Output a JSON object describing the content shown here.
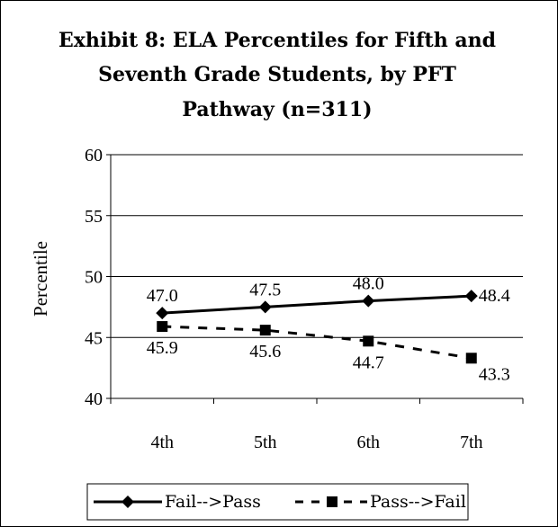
{
  "chart_data": {
    "type": "line",
    "title_lines": [
      "Exhibit 8:  ELA Percentiles for Fifth and",
      "Seventh Grade Students, by PFT",
      "Pathway (n=311)"
    ],
    "xlabel": "",
    "ylabel": "Percentile",
    "categories": [
      "4th",
      "5th",
      "6th",
      "7th"
    ],
    "ylim": [
      40,
      60
    ],
    "yticks": [
      40,
      45,
      50,
      55,
      60
    ],
    "grid": true,
    "legend_position": "bottom",
    "series": [
      {
        "name": "Fail-->Pass",
        "values": [
          47.0,
          47.5,
          48.0,
          48.4
        ],
        "labels": [
          "47.0",
          "47.5",
          "48.0",
          "48.4"
        ],
        "marker": "diamond",
        "line_style": "solid",
        "color": "#000000"
      },
      {
        "name": "Pass-->Fail",
        "values": [
          45.9,
          45.6,
          44.7,
          43.3
        ],
        "labels": [
          "45.9",
          "45.6",
          "44.7",
          "43.3"
        ],
        "marker": "square",
        "line_style": "dashed",
        "color": "#000000"
      }
    ]
  }
}
